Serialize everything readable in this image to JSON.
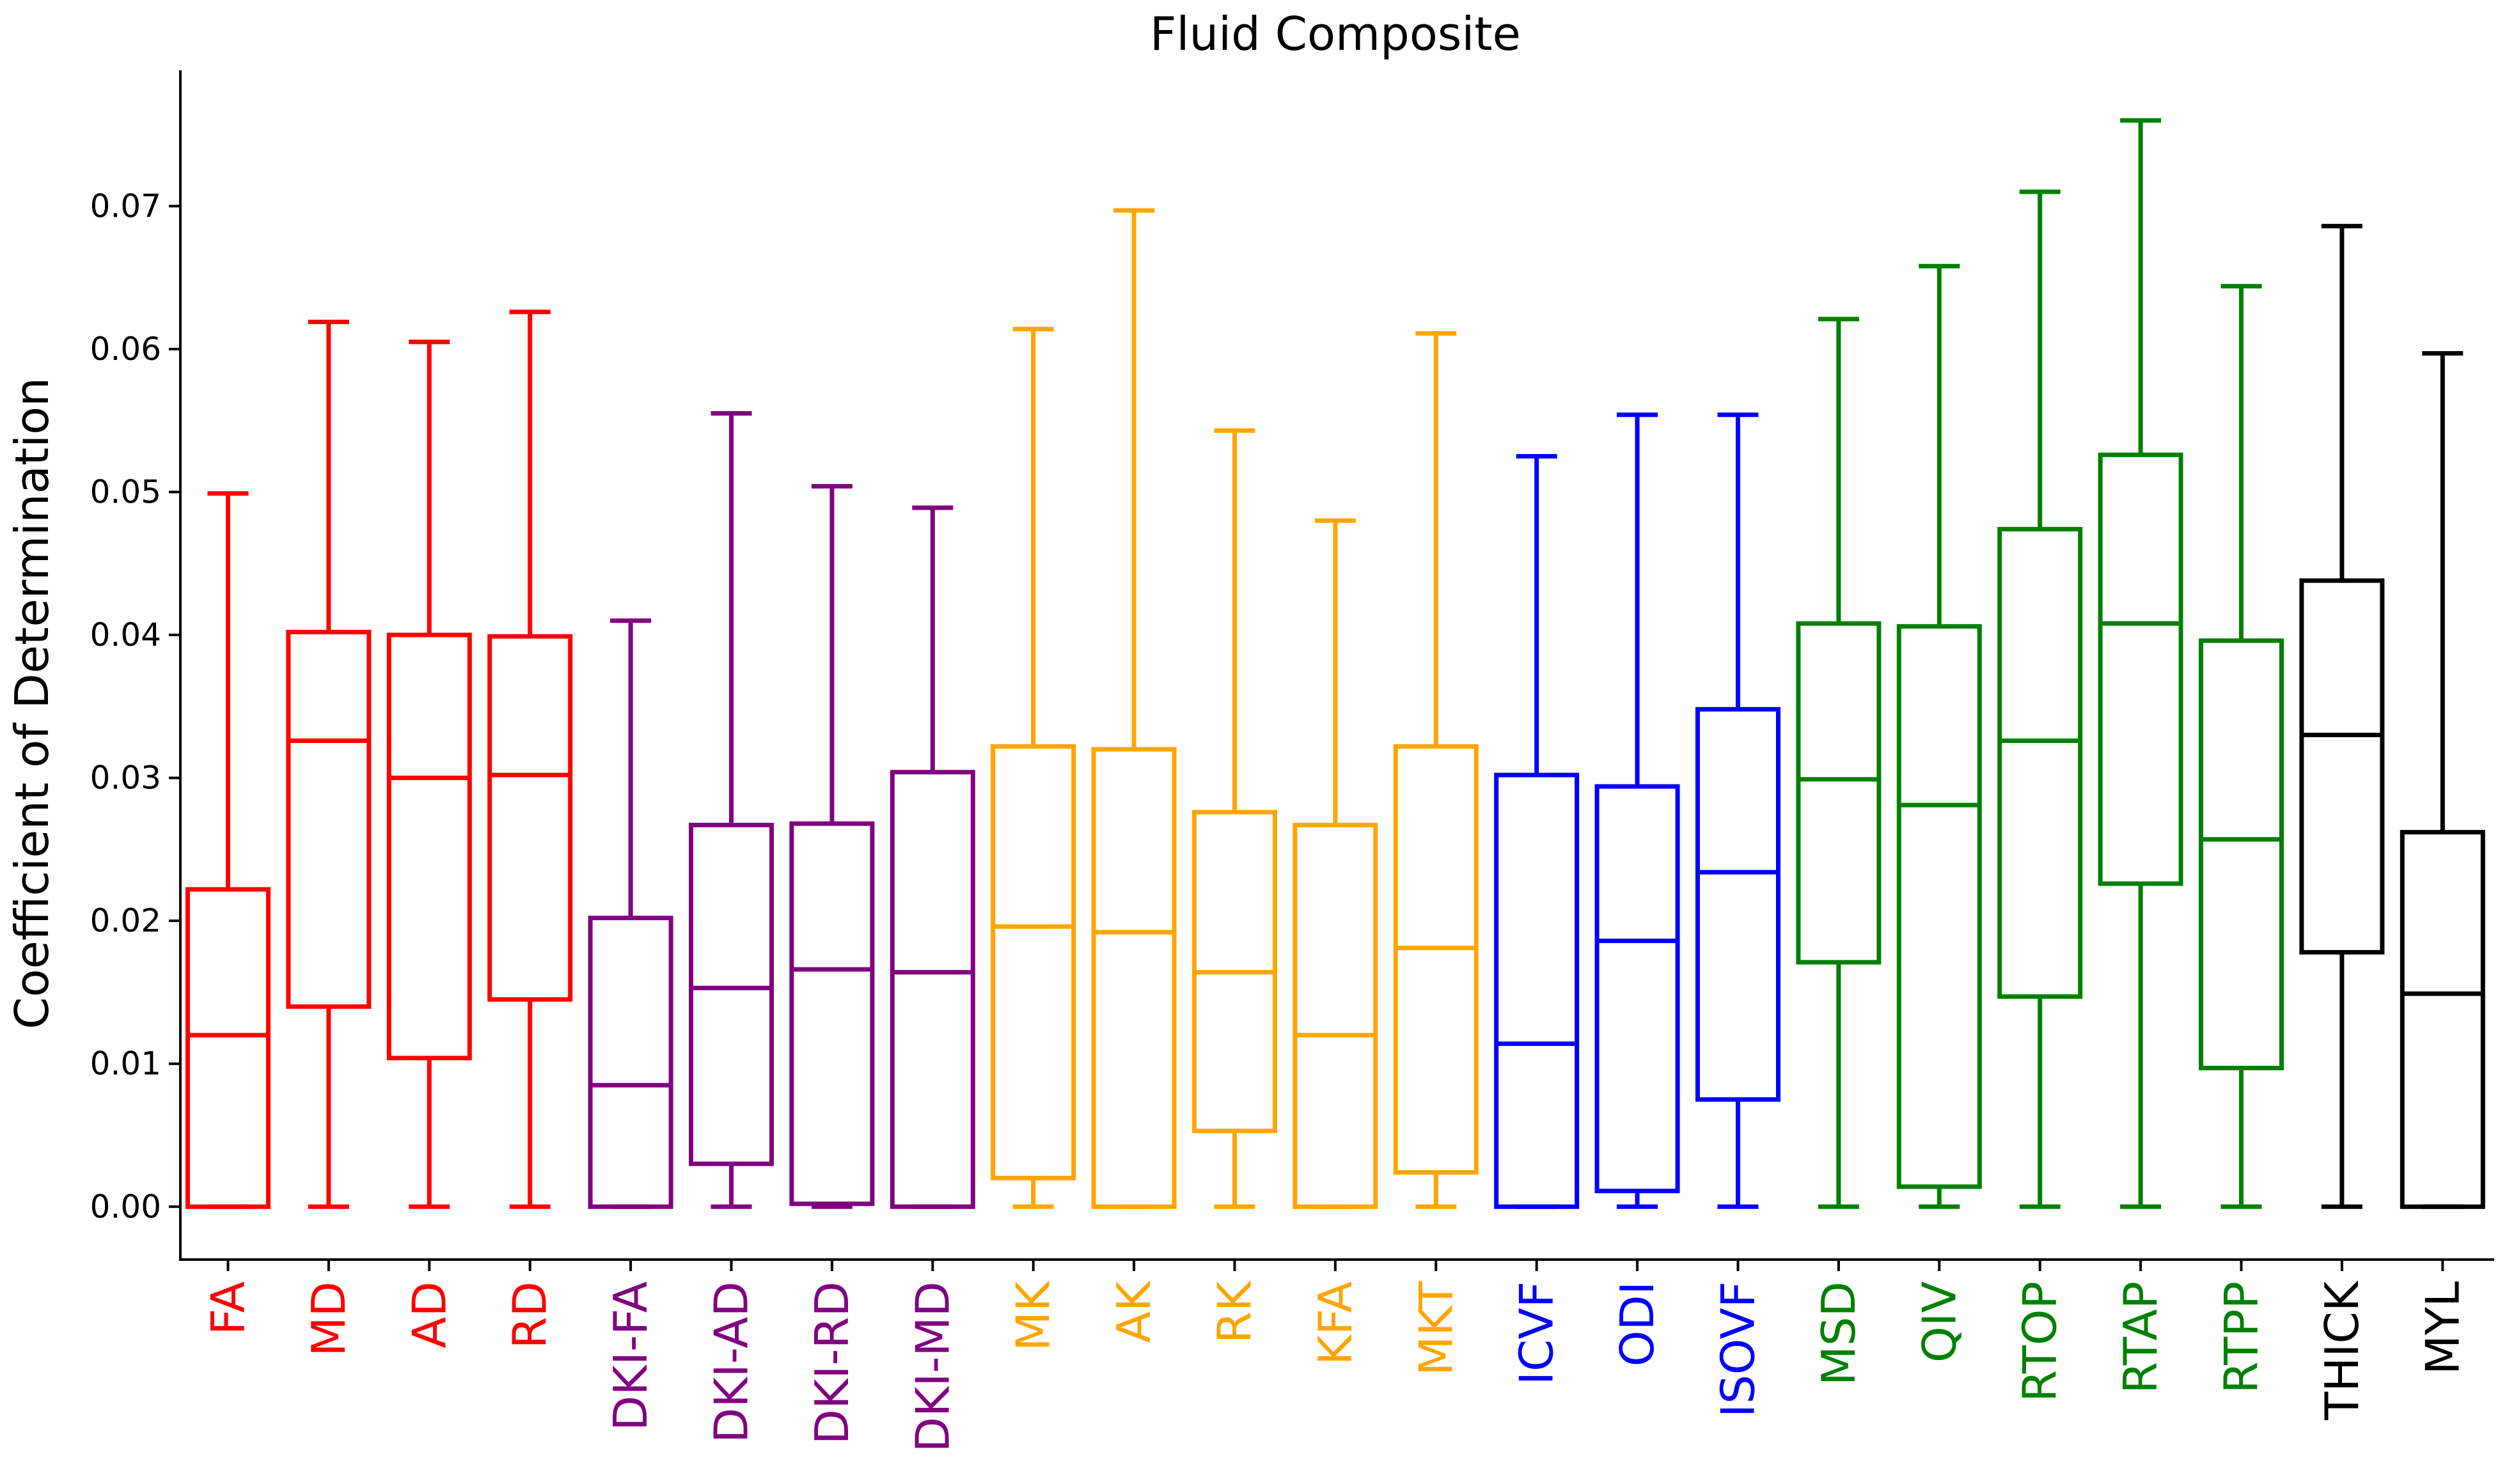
{
  "chart_data": {
    "type": "box",
    "title": "Fluid Composite",
    "xlabel": "",
    "ylabel": "Coefficient of Determination",
    "ylim": [
      -0.0037,
      0.0795
    ],
    "yticks": [
      0.0,
      0.01,
      0.02,
      0.03,
      0.04,
      0.05,
      0.06,
      0.07
    ],
    "ytick_labels": [
      "0.00",
      "0.01",
      "0.02",
      "0.03",
      "0.04",
      "0.05",
      "0.06",
      "0.07"
    ],
    "grid": false,
    "legend": "none",
    "boxes": [
      {
        "label": "FA",
        "color": "#ff0000",
        "whislo": 0.0,
        "q1": 0.0,
        "med": 0.012,
        "q3": 0.0222,
        "whishi": 0.0499
      },
      {
        "label": "MD",
        "color": "#ff0000",
        "whislo": 0.0,
        "q1": 0.014,
        "med": 0.0326,
        "q3": 0.0402,
        "whishi": 0.0619
      },
      {
        "label": "AD",
        "color": "#ff0000",
        "whislo": 0.0,
        "q1": 0.0104,
        "med": 0.03,
        "q3": 0.04,
        "whishi": 0.0605
      },
      {
        "label": "RD",
        "color": "#ff0000",
        "whislo": 0.0,
        "q1": 0.0145,
        "med": 0.0302,
        "q3": 0.0399,
        "whishi": 0.0626
      },
      {
        "label": "DKI-FA",
        "color": "#800080",
        "whislo": 0.0,
        "q1": 0.0,
        "med": 0.0085,
        "q3": 0.0202,
        "whishi": 0.041
      },
      {
        "label": "DKI-AD",
        "color": "#800080",
        "whislo": 0.0,
        "q1": 0.003,
        "med": 0.0153,
        "q3": 0.0267,
        "whishi": 0.0555
      },
      {
        "label": "DKI-RD",
        "color": "#800080",
        "whislo": 0.0,
        "q1": 0.0002,
        "med": 0.0166,
        "q3": 0.0268,
        "whishi": 0.0504
      },
      {
        "label": "DKI-MD",
        "color": "#800080",
        "whislo": 0.0,
        "q1": 0.0,
        "med": 0.0164,
        "q3": 0.0304,
        "whishi": 0.0489
      },
      {
        "label": "MK",
        "color": "#ffa500",
        "whislo": 0.0,
        "q1": 0.002,
        "med": 0.0196,
        "q3": 0.0322,
        "whishi": 0.0614
      },
      {
        "label": "AK",
        "color": "#ffa500",
        "whislo": 0.0,
        "q1": 0.0,
        "med": 0.0192,
        "q3": 0.032,
        "whishi": 0.0697
      },
      {
        "label": "RK",
        "color": "#ffa500",
        "whislo": 0.0,
        "q1": 0.0053,
        "med": 0.0164,
        "q3": 0.0276,
        "whishi": 0.0543
      },
      {
        "label": "KFA",
        "color": "#ffa500",
        "whislo": 0.0,
        "q1": 0.0,
        "med": 0.012,
        "q3": 0.0267,
        "whishi": 0.048
      },
      {
        "label": "MKT",
        "color": "#ffa500",
        "whislo": 0.0,
        "q1": 0.0024,
        "med": 0.0181,
        "q3": 0.0322,
        "whishi": 0.0611
      },
      {
        "label": "ICVF",
        "color": "#0000ff",
        "whislo": 0.0,
        "q1": 0.0,
        "med": 0.0114,
        "q3": 0.0302,
        "whishi": 0.0525
      },
      {
        "label": "ODI",
        "color": "#0000ff",
        "whislo": 0.0,
        "q1": 0.0011,
        "med": 0.0186,
        "q3": 0.0294,
        "whishi": 0.0554
      },
      {
        "label": "ISOVF",
        "color": "#0000ff",
        "whislo": 0.0,
        "q1": 0.0075,
        "med": 0.0234,
        "q3": 0.0348,
        "whishi": 0.0554
      },
      {
        "label": "MSD",
        "color": "#008000",
        "whislo": 0.0,
        "q1": 0.0171,
        "med": 0.0299,
        "q3": 0.0408,
        "whishi": 0.0621
      },
      {
        "label": "QIV",
        "color": "#008000",
        "whislo": 0.0,
        "q1": 0.0014,
        "med": 0.0281,
        "q3": 0.0406,
        "whishi": 0.0658
      },
      {
        "label": "RTOP",
        "color": "#008000",
        "whislo": 0.0,
        "q1": 0.0147,
        "med": 0.0326,
        "q3": 0.0474,
        "whishi": 0.071
      },
      {
        "label": "RTAP",
        "color": "#008000",
        "whislo": 0.0,
        "q1": 0.0226,
        "med": 0.0408,
        "q3": 0.0526,
        "whishi": 0.076
      },
      {
        "label": "RTPP",
        "color": "#008000",
        "whislo": 0.0,
        "q1": 0.0097,
        "med": 0.0257,
        "q3": 0.0396,
        "whishi": 0.0644
      },
      {
        "label": "THICK",
        "color": "#000000",
        "whislo": 0.0,
        "q1": 0.0178,
        "med": 0.033,
        "q3": 0.0438,
        "whishi": 0.0686
      },
      {
        "label": "MYL",
        "color": "#000000",
        "whislo": 0.0,
        "q1": 0.0,
        "med": 0.0149,
        "q3": 0.0262,
        "whishi": 0.0597
      }
    ]
  }
}
